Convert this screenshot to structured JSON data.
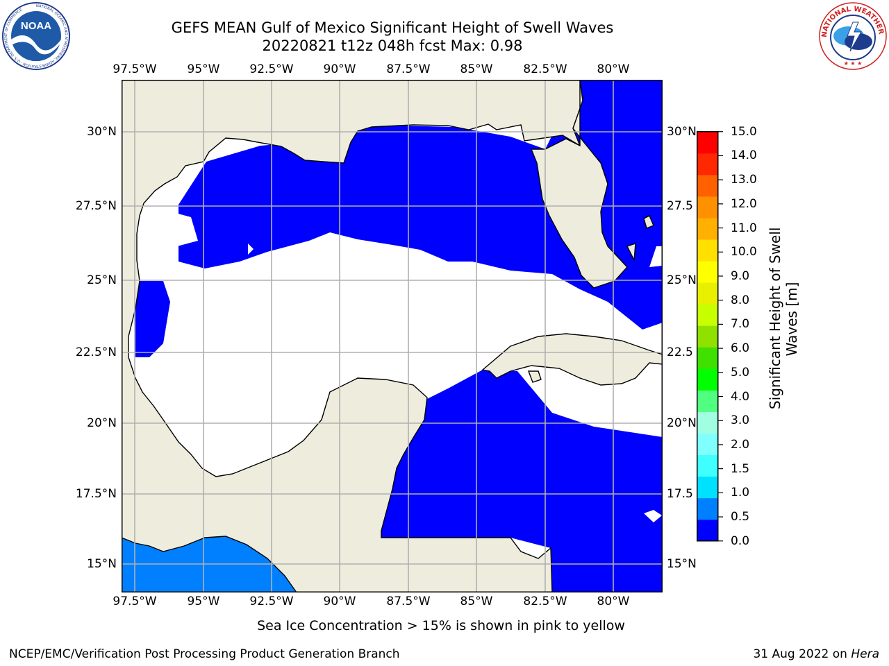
{
  "header": {
    "title_line1": "GEFS MEAN Gulf of Mexico Significant Height of Swell Waves",
    "title_line2": "20220821 t12z 048h fcst   Max: 0.98"
  },
  "logos": {
    "left_logo_text": "NOAA",
    "left_ring_text": "NATIONAL OCEANIC AND ATMOSPHERIC ADMINISTRATION · U.S. DEPARTMENT OF COMMERCE",
    "right_ring_text": "NATIONAL WEATHER SERVICE"
  },
  "map": {
    "lon_labels": [
      "97.5°W",
      "95°W",
      "92.5°W",
      "90°W",
      "87.5°W",
      "85°W",
      "82.5°W",
      "80°W"
    ],
    "lat_labels_left": [
      "30°N",
      "27.5°N",
      "25°N",
      "22.5°N",
      "20°N",
      "17.5°N",
      "15°N"
    ],
    "lat_labels_right": [
      "30°N",
      "27.5",
      "25°N",
      "22.5",
      "20°N",
      "17.5",
      "15°N"
    ],
    "extent": {
      "lon_min": -98,
      "lon_max": -78.2,
      "lat_min": 14,
      "lat_max": 32
    },
    "colors": {
      "land": "#eeecdc",
      "zero_band": "#0000ff",
      "band_0_5_1_0": "#0080ff",
      "grid": "#b0b0b0"
    }
  },
  "colorbar": {
    "tick_labels": [
      "15.0",
      "14.0",
      "13.0",
      "12.0",
      "11.0",
      "10.0",
      "9.0",
      "8.0",
      "7.0",
      "6.0",
      "5.0",
      "4.0",
      "3.0",
      "2.0",
      "1.5",
      "1.0",
      "0.5",
      "0.0"
    ],
    "label": "Significant Height of Swell Waves [m]",
    "label_line1": "Significant Height of Swell",
    "label_line2": "Waves [m]",
    "colors": [
      "#0000ff",
      "#0080ff",
      "#00e0ff",
      "#40ffff",
      "#80ffff",
      "#a0ffe0",
      "#50ff80",
      "#00ff00",
      "#40e000",
      "#90e000",
      "#c8ff00",
      "#e8f000",
      "#ffff00",
      "#ffe000",
      "#ffb000",
      "#ff9000",
      "#ff6000",
      "#ff2800",
      "#ff0000"
    ]
  },
  "footer": {
    "note": "Sea Ice Concentration > 15% is shown in pink to yellow",
    "credit": "NCEP/EMC/Verification Post Processing Product Generation Branch",
    "date_prefix": "31 Aug 2022 on ",
    "machine": "Hera"
  }
}
